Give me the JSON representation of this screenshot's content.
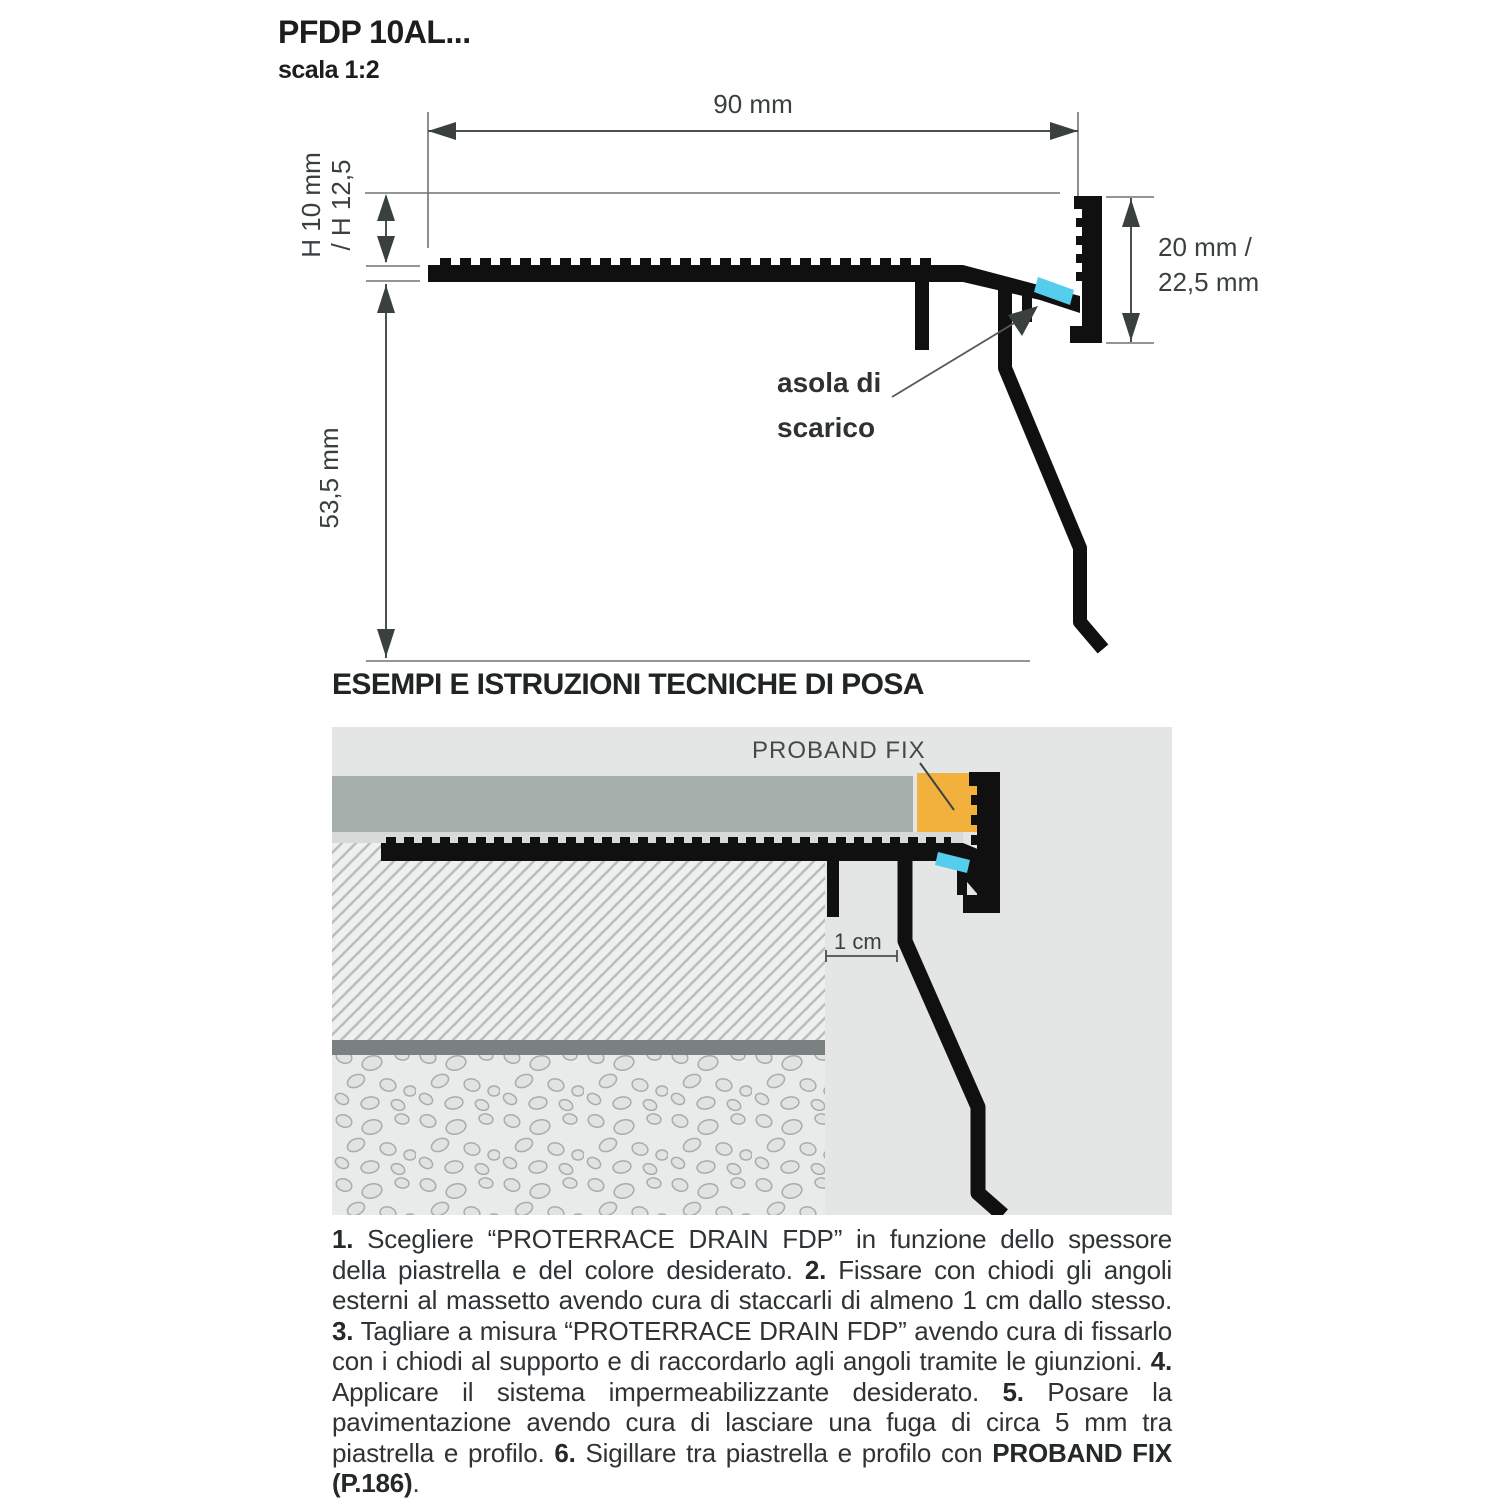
{
  "page": {
    "title": "PFDP 10AL...",
    "subtitle": "scala 1:2"
  },
  "drawing": {
    "dim_width": "90 mm",
    "dim_height_left_line1": "H 10 mm",
    "dim_height_left_line2": "/ H 12,5",
    "dim_right_line1": "20 mm /",
    "dim_right_line2": "22,5 mm",
    "dim_drop": "53,5 mm",
    "callout_line1": "asola di",
    "callout_line2": "scarico",
    "colors": {
      "profile": "#101010",
      "drain_slot": "#55cdec",
      "dim_lines": "#4a4f50",
      "thin_lines": "#6e7374"
    }
  },
  "section": {
    "header": "ESEMPI E ISTRUZIONI TECNICHE DI POSA"
  },
  "example": {
    "label_sealant": "PROBAND FIX",
    "label_gap": "1 cm",
    "colors": {
      "background": "#e3e6e5",
      "sealant": "#f2b13d",
      "tile": "#a7afad",
      "adhesive": "#d6dbd9",
      "membrane": "#7a8180",
      "drain_slot": "#55cdec",
      "profile": "#101010"
    }
  },
  "instructions": {
    "segments": [
      {
        "bold": true,
        "text": "1."
      },
      {
        "bold": false,
        "text": " Scegliere “PROTERRACE DRAIN FDP” in funzione dello spessore della piastrella e del colore desiderato. "
      },
      {
        "bold": true,
        "text": "2."
      },
      {
        "bold": false,
        "text": " Fissare con chiodi gli angoli esterni al massetto avendo cura di staccarli di almeno 1 cm dallo stesso. "
      },
      {
        "bold": true,
        "text": "3."
      },
      {
        "bold": false,
        "text": " Tagliare a misura “PROTERRACE DRAIN FDP” avendo cura di fissarlo con i chiodi al supporto e di raccordarlo agli angoli tramite le giunzioni. "
      },
      {
        "bold": true,
        "text": "4."
      },
      {
        "bold": false,
        "text": " Applicare il sistema impermeabilizzante desiderato. "
      },
      {
        "bold": true,
        "text": "5."
      },
      {
        "bold": false,
        "text": " Posare la pavimentazione avendo cura di lasciare una fuga di circa 5 mm tra piastrella e profilo. "
      },
      {
        "bold": true,
        "text": "6."
      },
      {
        "bold": false,
        "text": " Sigillare tra piastrella e profilo con "
      },
      {
        "bold": true,
        "text": "PROBAND FIX (P.186)"
      },
      {
        "bold": false,
        "text": "."
      }
    ]
  }
}
